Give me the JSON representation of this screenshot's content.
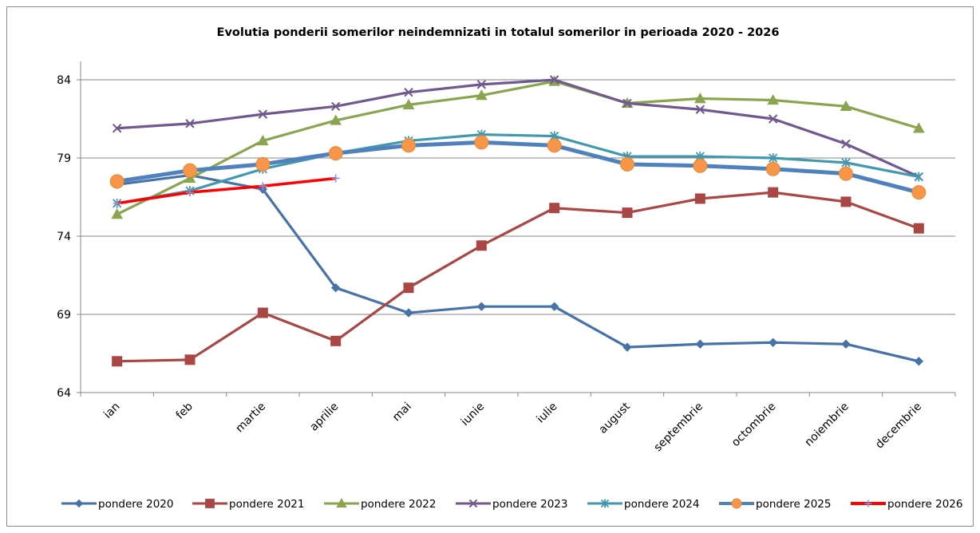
{
  "chart_data": {
    "type": "line",
    "title": "Evolutia ponderii somerilor neindemnizati in totalul somerilor in perioada 2020 -  2026",
    "xlabel": "",
    "ylabel": "",
    "categories": [
      "ian",
      "feb",
      "martie",
      "aprilie",
      "mai",
      "iunie",
      "iulie",
      "august",
      "septembrie",
      "octombrie",
      "noiembrie",
      "decembrie"
    ],
    "ylim": [
      64,
      86
    ],
    "yticks": [
      "64",
      "69",
      "74",
      "79",
      "84"
    ],
    "grid": true,
    "legend_position": "bottom",
    "series": [
      {
        "name": "pondere 2020",
        "color": "#4672a8",
        "marker": "diamond",
        "values": [
          77.3,
          77.9,
          77.0,
          70.7,
          69.1,
          69.5,
          69.5,
          66.9,
          67.1,
          67.2,
          67.1,
          66.0
        ]
      },
      {
        "name": "pondere 2021",
        "color": "#aa4643",
        "marker": "square",
        "values": [
          66.0,
          66.1,
          69.1,
          67.3,
          70.7,
          73.4,
          75.8,
          75.5,
          76.4,
          76.8,
          76.2,
          74.5
        ]
      },
      {
        "name": "pondere 2022",
        "color": "#89a54e",
        "marker": "triangle",
        "values": [
          75.4,
          77.7,
          80.1,
          81.4,
          82.4,
          83.0,
          83.9,
          82.5,
          82.8,
          82.7,
          82.3,
          80.9
        ]
      },
      {
        "name": "pondere 2023",
        "color": "#71588f",
        "marker": "x",
        "values": [
          80.9,
          81.2,
          81.8,
          82.3,
          83.2,
          83.7,
          84.0,
          82.5,
          82.1,
          81.5,
          79.9,
          77.8
        ]
      },
      {
        "name": "pondere 2024",
        "color": "#4198af",
        "marker": "asterisk",
        "values": [
          76.1,
          76.9,
          78.3,
          79.3,
          80.1,
          80.5,
          80.4,
          79.1,
          79.1,
          79.0,
          78.7,
          77.8
        ]
      },
      {
        "name": "pondere 2025",
        "color": "#4f81bd",
        "marker": "circle",
        "values": [
          77.5,
          78.2,
          78.6,
          79.3,
          79.8,
          80.0,
          79.8,
          78.6,
          78.5,
          78.3,
          78.0,
          76.8
        ]
      },
      {
        "name": "pondere 2026",
        "color": "#ff0000",
        "marker": "plus",
        "values": [
          76.1,
          76.8,
          77.2,
          77.7,
          null,
          null,
          null,
          null,
          null,
          null,
          null,
          null
        ]
      }
    ]
  }
}
